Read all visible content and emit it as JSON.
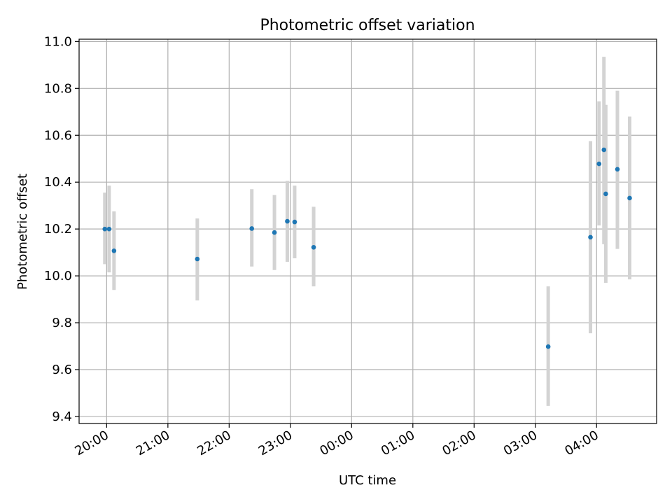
{
  "chart_data": {
    "type": "scatter",
    "title": "Photometric offset variation",
    "xlabel": "UTC time",
    "ylabel": "Photometric offset",
    "x_ticks": [
      "20:00",
      "21:00",
      "22:00",
      "23:00",
      "00:00",
      "01:00",
      "02:00",
      "03:00",
      "04:00"
    ],
    "x_tick_hours": [
      20,
      21,
      22,
      23,
      24,
      25,
      26,
      27,
      28
    ],
    "xlim_hours": [
      19.55,
      28.98
    ],
    "ylim": [
      9.37,
      11.01
    ],
    "y_ticks": [
      "9.4",
      "9.6",
      "9.8",
      "10.0",
      "10.2",
      "10.4",
      "10.6",
      "10.8",
      "11.0"
    ],
    "grid": true,
    "colors": {
      "point": "#1f77b4",
      "errorbar": "#d3d3d3",
      "grid": "#b0b0b0"
    },
    "points": [
      {
        "time": "19:58",
        "hour": 19.97,
        "value": 10.2,
        "err_low": 10.05,
        "err_high": 10.355
      },
      {
        "time": "20:03",
        "hour": 20.04,
        "value": 10.2,
        "err_low": 10.015,
        "err_high": 10.385
      },
      {
        "time": "20:07",
        "hour": 20.12,
        "value": 10.107,
        "err_low": 9.94,
        "err_high": 10.275
      },
      {
        "time": "21:29",
        "hour": 21.48,
        "value": 10.072,
        "err_low": 9.895,
        "err_high": 10.245
      },
      {
        "time": "22:23",
        "hour": 22.37,
        "value": 10.202,
        "err_low": 10.04,
        "err_high": 10.37
      },
      {
        "time": "22:44",
        "hour": 22.74,
        "value": 10.185,
        "err_low": 10.025,
        "err_high": 10.345
      },
      {
        "time": "22:57",
        "hour": 22.95,
        "value": 10.233,
        "err_low": 10.06,
        "err_high": 10.405
      },
      {
        "time": "23:04",
        "hour": 23.07,
        "value": 10.23,
        "err_low": 10.075,
        "err_high": 10.385
      },
      {
        "time": "23:23",
        "hour": 23.38,
        "value": 10.122,
        "err_low": 9.955,
        "err_high": 10.295
      },
      {
        "time": "03:13",
        "hour": 27.21,
        "value": 9.698,
        "err_low": 9.445,
        "err_high": 9.955
      },
      {
        "time": "03:54",
        "hour": 27.9,
        "value": 10.165,
        "err_low": 9.755,
        "err_high": 10.575
      },
      {
        "time": "04:03",
        "hour": 28.04,
        "value": 10.478,
        "err_low": 10.215,
        "err_high": 10.745
      },
      {
        "time": "04:07",
        "hour": 28.12,
        "value": 10.538,
        "err_low": 10.135,
        "err_high": 10.935
      },
      {
        "time": "04:09",
        "hour": 28.15,
        "value": 10.35,
        "err_low": 9.97,
        "err_high": 10.73
      },
      {
        "time": "04:20",
        "hour": 28.34,
        "value": 10.455,
        "err_low": 10.115,
        "err_high": 10.79
      },
      {
        "time": "04:32",
        "hour": 28.54,
        "value": 10.332,
        "err_low": 9.985,
        "err_high": 10.68
      }
    ]
  }
}
